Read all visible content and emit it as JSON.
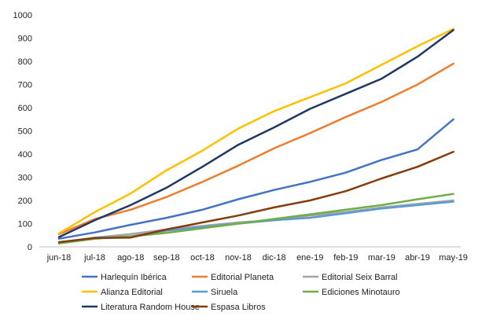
{
  "chart_data": {
    "type": "line",
    "title": "",
    "xlabel": "",
    "ylabel": "",
    "ylim": [
      0,
      1000
    ],
    "yticks": [
      0,
      100,
      200,
      300,
      400,
      500,
      600,
      700,
      800,
      900,
      1000
    ],
    "grid": false,
    "legend": "bottom",
    "categories": [
      "jun-18",
      "jul-18",
      "ago-18",
      "sep-18",
      "oct-18",
      "nov-18",
      "dic-18",
      "ene-19",
      "feb-19",
      "mar-19",
      "abr-19",
      "may-19"
    ],
    "series": [
      {
        "name": "Harlequín Ibérica",
        "color": "#4472C4",
        "values": [
          35,
          62,
          95,
          125,
          160,
          205,
          245,
          280,
          320,
          375,
          420,
          550
        ]
      },
      {
        "name": "Editorial Planeta",
        "color": "#ED7D31",
        "values": [
          55,
          120,
          160,
          215,
          280,
          350,
          425,
          490,
          560,
          625,
          700,
          790
        ]
      },
      {
        "name": "Editorial Seix Barral",
        "color": "#A5A5A5",
        "values": [
          15,
          40,
          55,
          75,
          90,
          105,
          115,
          135,
          150,
          170,
          185,
          200
        ]
      },
      {
        "name": "Alianza Editorial",
        "color": "#FFC000",
        "values": [
          58,
          150,
          230,
          330,
          415,
          510,
          585,
          645,
          705,
          785,
          865,
          940
        ]
      },
      {
        "name": "Siruela",
        "color": "#5B9BD5",
        "values": [
          20,
          38,
          45,
          70,
          85,
          100,
          115,
          125,
          145,
          165,
          180,
          195
        ]
      },
      {
        "name": "Ediciones Minotauro",
        "color": "#70AD47",
        "values": [
          15,
          35,
          45,
          60,
          80,
          100,
          120,
          140,
          160,
          180,
          205,
          228
        ]
      },
      {
        "name": "Literatura Random House",
        "color": "#203864",
        "values": [
          42,
          115,
          180,
          255,
          345,
          440,
          515,
          595,
          660,
          725,
          820,
          935
        ]
      },
      {
        "name": "Espasa Libros",
        "color": "#843C0C",
        "values": [
          20,
          38,
          40,
          75,
          105,
          135,
          170,
          200,
          240,
          295,
          345,
          410
        ]
      }
    ]
  }
}
